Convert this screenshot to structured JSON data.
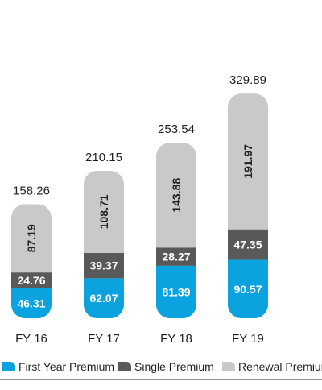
{
  "chart_data": {
    "type": "bar",
    "stacked": true,
    "categories": [
      "FY 16",
      "FY 17",
      "FY 18",
      "FY 19"
    ],
    "series": [
      {
        "name": "First Year Premium",
        "color": "#0ba2e0",
        "values": [
          46.31,
          62.07,
          81.39,
          90.57
        ]
      },
      {
        "name": "Single Premium",
        "color": "#58595b",
        "values": [
          24.76,
          39.37,
          28.27,
          47.35
        ]
      },
      {
        "name": "Renewal Premium",
        "color": "#c8c9cb",
        "values": [
          87.19,
          108.71,
          143.88,
          191.97
        ]
      }
    ],
    "totals": [
      "158.26",
      "210.15",
      "253.54",
      "329.89"
    ],
    "legend_position": "bottom",
    "grid": false
  }
}
